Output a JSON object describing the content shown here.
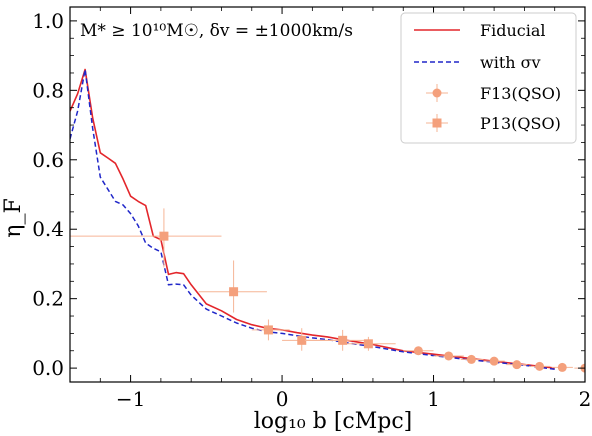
{
  "chart_data": {
    "type": "line",
    "xlabel": "log₁₀ b [cMpc]",
    "ylabel": "η_F",
    "xlim": [
      -1.4,
      2.0
    ],
    "ylim": [
      -0.04,
      1.04
    ],
    "x_ticks": [
      -1,
      0,
      1,
      2
    ],
    "x_tick_labels": [
      "−1",
      "0",
      "1",
      "2"
    ],
    "y_ticks": [
      0.0,
      0.2,
      0.4,
      0.6,
      0.8,
      1.0
    ],
    "y_tick_labels": [
      "0.0",
      "0.2",
      "0.4",
      "0.6",
      "0.8",
      "1.0"
    ],
    "annotation": "M* ≥ 10¹⁰M☉, δv = ±1000km/s",
    "legend_position": "top-right",
    "colors": {
      "fiducial": "#e3262b",
      "with_sigma": "#2027c9",
      "obs": "#f4a07c",
      "obs_err": "#f6b596"
    },
    "series": [
      {
        "name": "Fiducial",
        "style": "solid",
        "x": [
          -1.4,
          -1.35,
          -1.3,
          -1.25,
          -1.2,
          -1.15,
          -1.1,
          -1.05,
          -1.0,
          -0.95,
          -0.9,
          -0.85,
          -0.8,
          -0.75,
          -0.7,
          -0.65,
          -0.6,
          -0.5,
          -0.4,
          -0.3,
          -0.2,
          -0.1,
          0.0,
          0.1,
          0.2,
          0.3,
          0.4,
          0.5,
          0.6,
          0.8,
          1.0,
          1.2,
          1.4,
          1.6,
          1.8
        ],
        "y": [
          0.74,
          0.79,
          0.86,
          0.72,
          0.62,
          0.605,
          0.59,
          0.545,
          0.495,
          0.48,
          0.468,
          0.38,
          0.37,
          0.27,
          0.275,
          0.272,
          0.24,
          0.185,
          0.165,
          0.14,
          0.125,
          0.115,
          0.11,
          0.102,
          0.095,
          0.09,
          0.082,
          0.075,
          0.068,
          0.05,
          0.04,
          0.03,
          0.02,
          0.01,
          0.0
        ]
      },
      {
        "name": "with σv",
        "style": "dashed",
        "x": [
          -1.4,
          -1.35,
          -1.3,
          -1.25,
          -1.2,
          -1.15,
          -1.1,
          -1.05,
          -1.0,
          -0.95,
          -0.9,
          -0.85,
          -0.8,
          -0.75,
          -0.7,
          -0.65,
          -0.6,
          -0.5,
          -0.4,
          -0.3,
          -0.2,
          -0.1,
          0.0,
          0.1,
          0.2,
          0.3,
          0.4,
          0.5,
          0.6,
          0.8,
          1.0,
          1.2,
          1.4,
          1.6,
          1.8
        ],
        "y": [
          0.66,
          0.74,
          0.86,
          0.69,
          0.55,
          0.515,
          0.48,
          0.47,
          0.445,
          0.41,
          0.36,
          0.345,
          0.335,
          0.24,
          0.242,
          0.24,
          0.21,
          0.17,
          0.15,
          0.13,
          0.115,
          0.105,
          0.1,
          0.093,
          0.087,
          0.082,
          0.075,
          0.068,
          0.062,
          0.047,
          0.036,
          0.026,
          0.017,
          0.008,
          -0.003
        ]
      }
    ],
    "observations": [
      {
        "name": "F13(QSO)",
        "marker": "circle",
        "points": [
          {
            "x": 0.9,
            "y": 0.05,
            "xlo": 0.8,
            "xhi": 1.0,
            "ylo": 0.04,
            "yhi": 0.062
          },
          {
            "x": 1.1,
            "y": 0.035,
            "xlo": 1.0,
            "xhi": 1.2,
            "ylo": 0.025,
            "yhi": 0.045
          },
          {
            "x": 1.25,
            "y": 0.025,
            "xlo": 1.18,
            "xhi": 1.33,
            "ylo": 0.015,
            "yhi": 0.035
          },
          {
            "x": 1.4,
            "y": 0.02,
            "xlo": 1.33,
            "xhi": 1.47,
            "ylo": 0.012,
            "yhi": 0.028
          },
          {
            "x": 1.55,
            "y": 0.01,
            "xlo": 1.48,
            "xhi": 1.62,
            "ylo": 0.004,
            "yhi": 0.016
          },
          {
            "x": 1.7,
            "y": 0.005,
            "xlo": 1.63,
            "xhi": 1.77,
            "ylo": 0.0,
            "yhi": 0.01
          },
          {
            "x": 1.85,
            "y": 0.002,
            "xlo": 1.78,
            "xhi": 1.92,
            "ylo": -0.003,
            "yhi": 0.007
          },
          {
            "x": 2.0,
            "y": 0.0,
            "xlo": 1.93,
            "xhi": 2.07,
            "ylo": -0.005,
            "yhi": 0.005
          }
        ]
      },
      {
        "name": "P13(QSO)",
        "marker": "square",
        "points": [
          {
            "x": -0.78,
            "y": 0.38,
            "xlo": -1.4,
            "xhi": -0.4,
            "ylo": 0.29,
            "yhi": 0.46
          },
          {
            "x": -0.32,
            "y": 0.22,
            "xlo": -0.55,
            "xhi": -0.1,
            "ylo": 0.16,
            "yhi": 0.31
          },
          {
            "x": -0.09,
            "y": 0.11,
            "xlo": -0.2,
            "xhi": 0.05,
            "ylo": 0.08,
            "yhi": 0.14
          },
          {
            "x": 0.13,
            "y": 0.08,
            "xlo": 0.0,
            "xhi": 0.42,
            "ylo": 0.05,
            "yhi": 0.115
          },
          {
            "x": 0.4,
            "y": 0.08,
            "xlo": 0.15,
            "xhi": 0.55,
            "ylo": 0.05,
            "yhi": 0.11
          },
          {
            "x": 0.57,
            "y": 0.07,
            "xlo": 0.43,
            "xhi": 0.75,
            "ylo": 0.05,
            "yhi": 0.09
          }
        ]
      }
    ]
  }
}
